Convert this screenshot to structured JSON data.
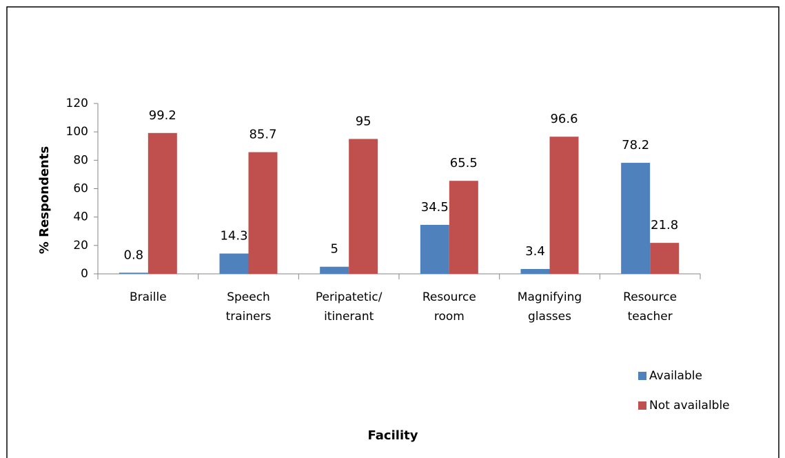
{
  "chart_data": {
    "type": "bar",
    "x_label": "Facility",
    "y_label": "% Respondents",
    "categories": [
      "Braille",
      "Speech trainers",
      "Peripatetic/ itinerant",
      "Resource room",
      "Magnifying glasses",
      "Resource teacher"
    ],
    "series": [
      {
        "name": "Available",
        "color": "#4f81bd",
        "values": [
          0.8,
          14.3,
          5,
          34.5,
          3.4,
          78.2
        ]
      },
      {
        "name": "Not availalble",
        "color": "#c0504d",
        "values": [
          99.2,
          85.7,
          95,
          65.5,
          96.6,
          21.8
        ]
      }
    ],
    "ylim": [
      0,
      120
    ],
    "yticks": [
      0,
      20,
      40,
      60,
      80,
      100,
      120
    ],
    "grid": false,
    "legend": "right"
  }
}
